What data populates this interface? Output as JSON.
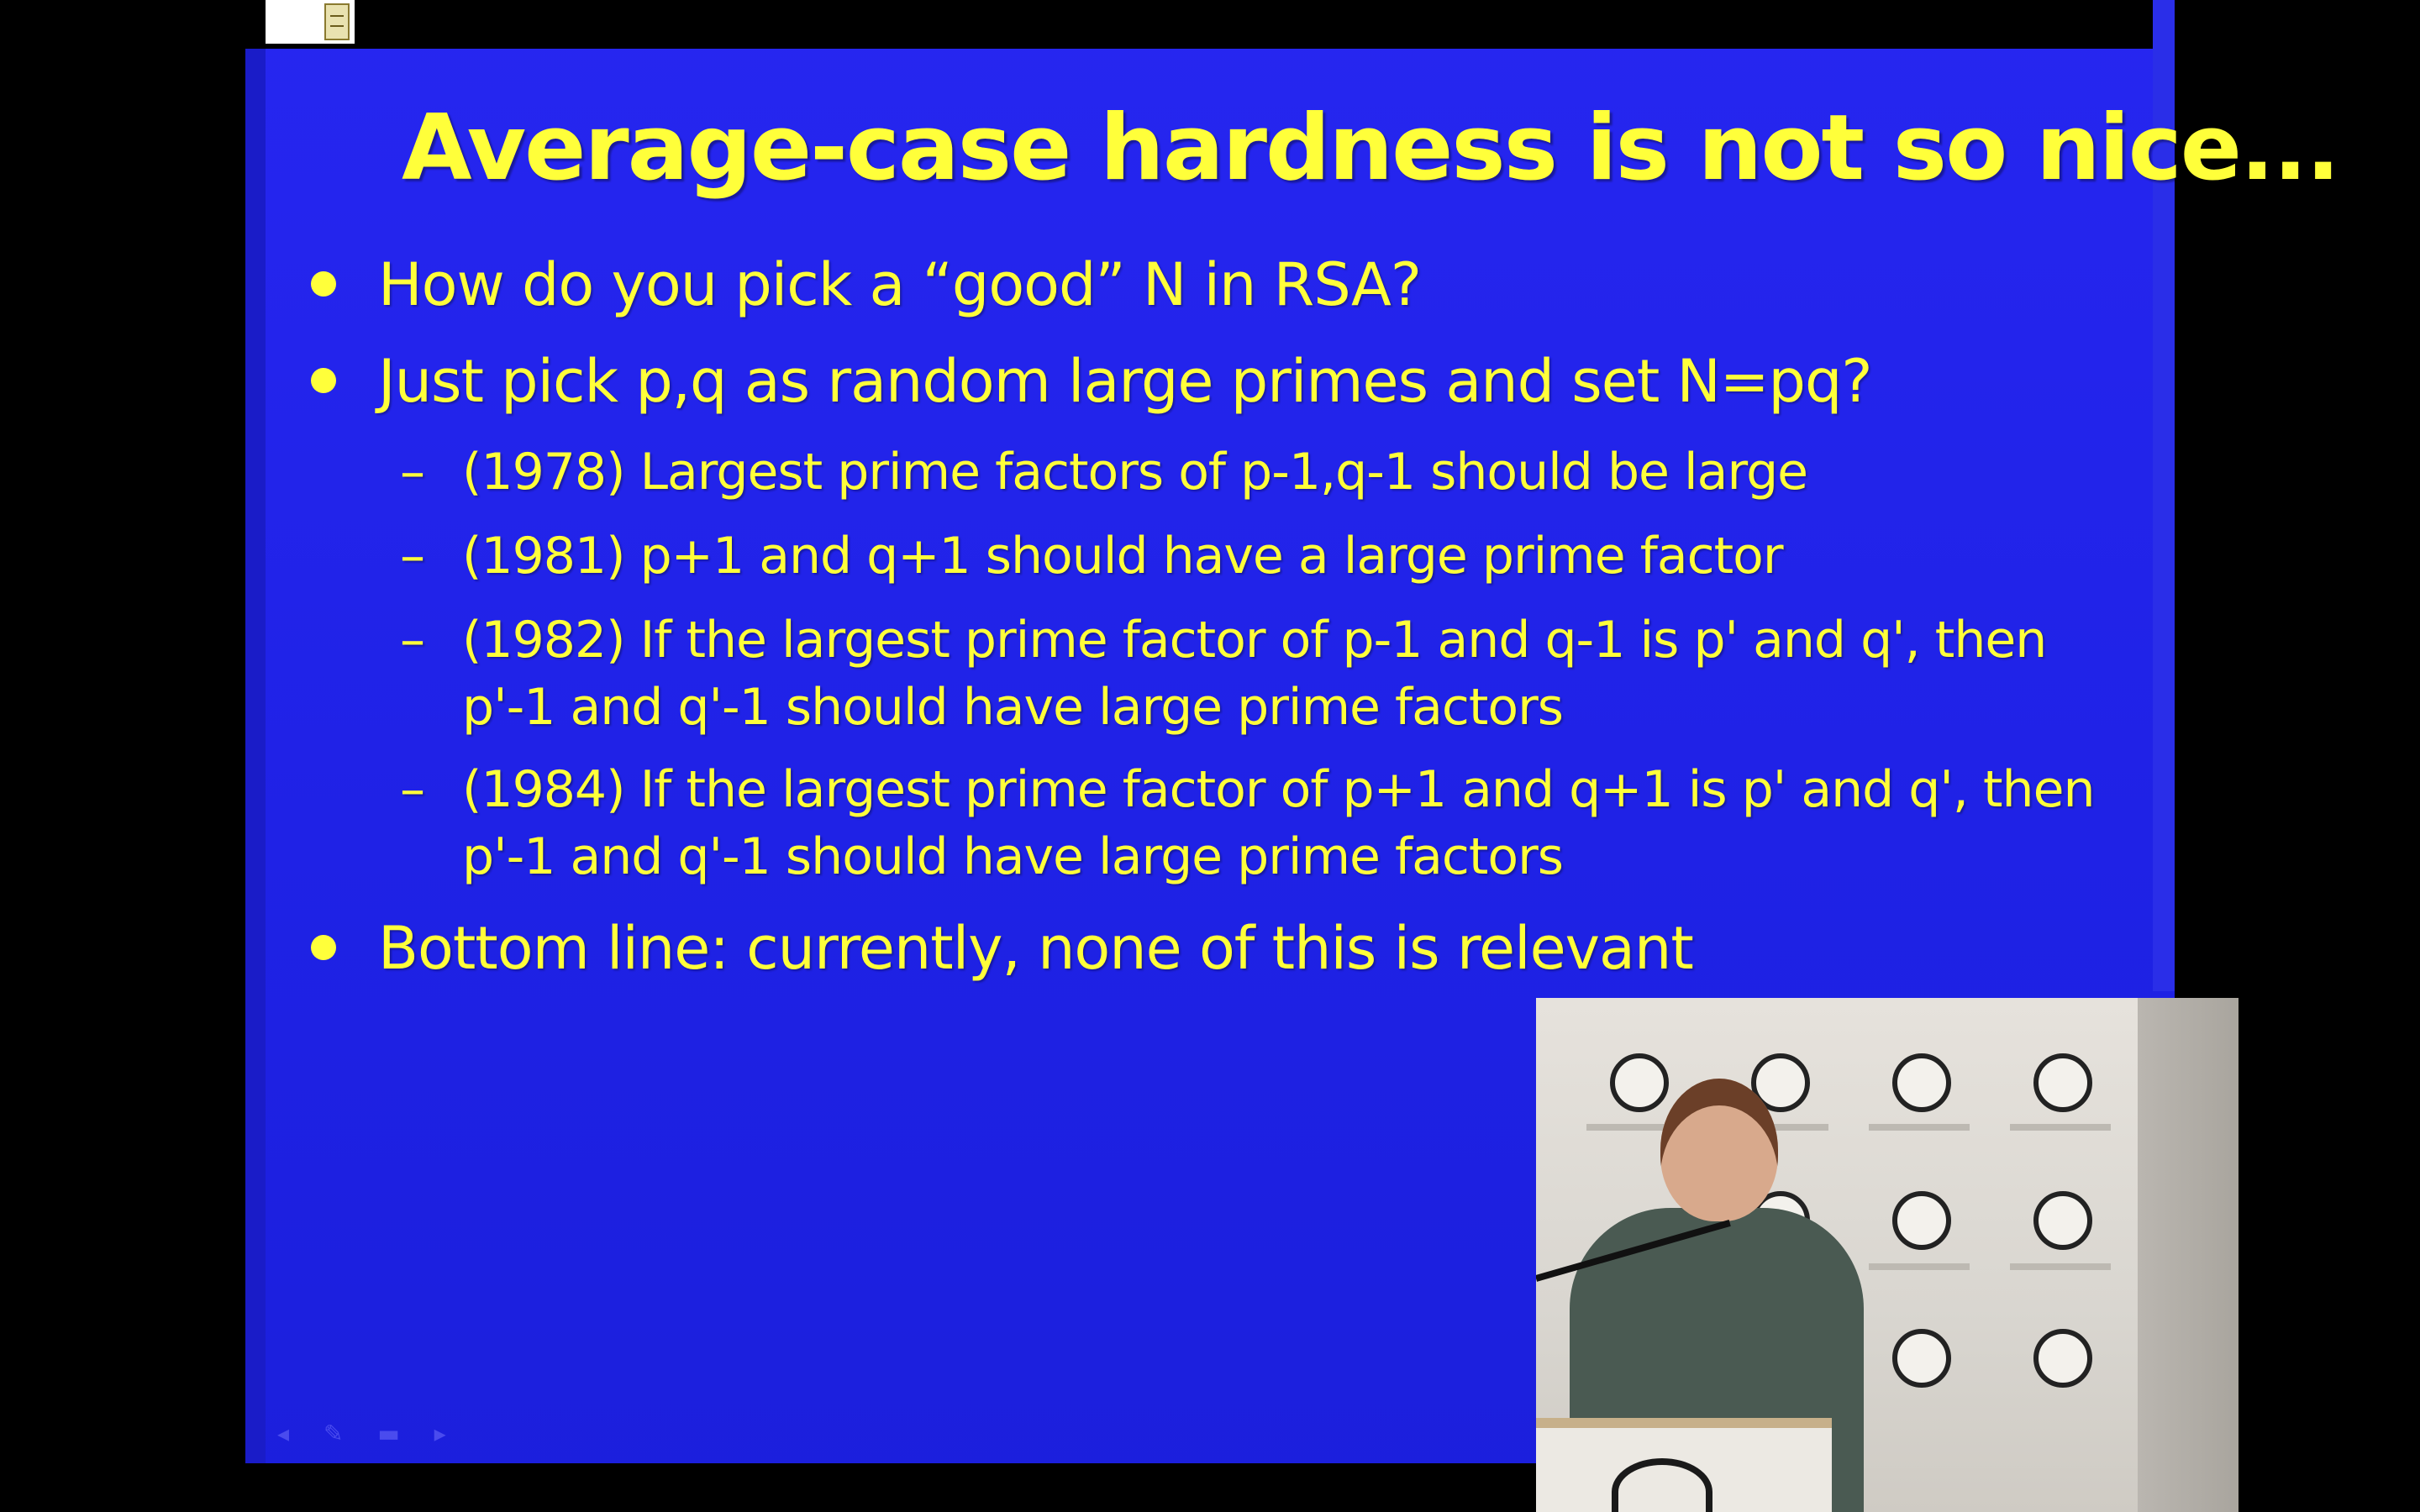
{
  "slide": {
    "title": "Average-case hardness is not so nice...",
    "bullets": [
      "How do you pick a “good” N in RSA?",
      "Just pick p,q as random large primes and set N=pq?",
      "Bottom line: currently, none of this is relevant"
    ],
    "sub_bullets": [
      {
        "dash": "–",
        "line1": "(1978) Largest prime factors of p-1,q-1 should be large",
        "line2": ""
      },
      {
        "dash": "–",
        "line1": "(1981) p+1 and q+1 should have a large prime factor",
        "line2": ""
      },
      {
        "dash": "–",
        "line1": "(1982) If the largest prime factor of p-1 and q-1 is p' and q', then",
        "line2": "p'-1 and q'-1 should have large prime factors"
      },
      {
        "dash": "–",
        "line1": "(1984) If the largest prime factor of p+1 and q+1 is p' and q', then",
        "line2": "p'-1 and q'-1 should have large prime factors"
      }
    ]
  },
  "colors": {
    "slide_background": "#2626f0",
    "text": "#ffff3a",
    "frame": "#000000"
  },
  "icons": {
    "logo": "slide-logo-icon",
    "toolbar": "slide-toolbar-icons"
  }
}
